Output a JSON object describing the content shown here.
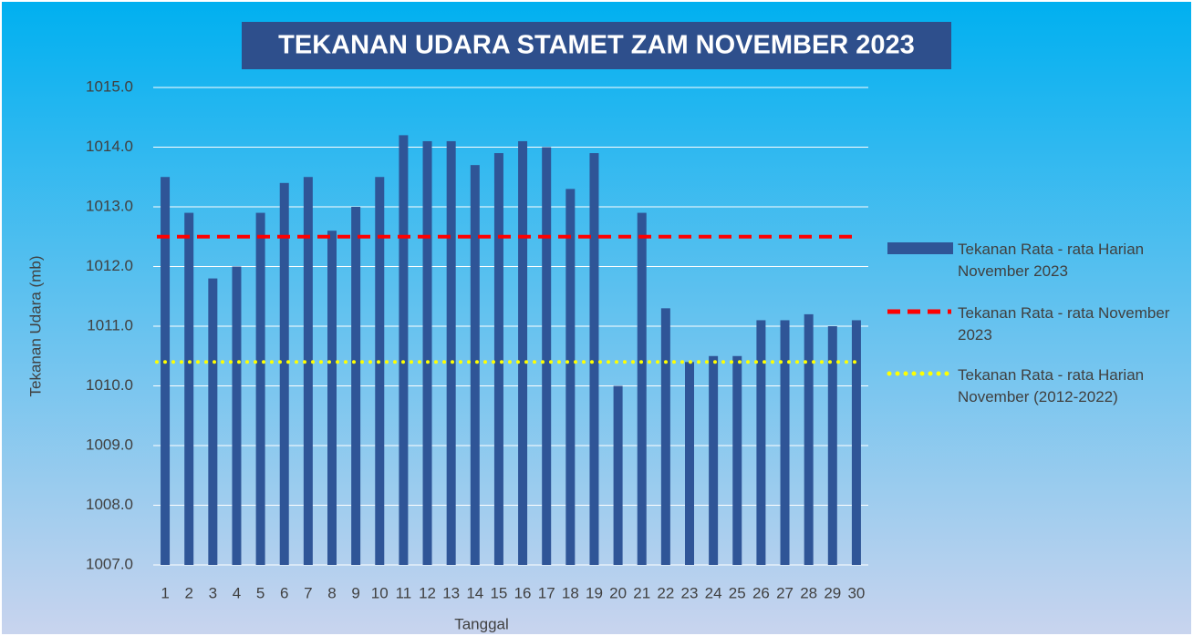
{
  "chart_data": {
    "type": "bar",
    "title": "TEKANAN UDARA STAMET ZAM NOVEMBER 2023",
    "x_label": "Tanggal",
    "y_label": "Tekanan Udara (mb)",
    "categories": [
      "1",
      "2",
      "3",
      "4",
      "5",
      "6",
      "7",
      "8",
      "9",
      "10",
      "11",
      "12",
      "13",
      "14",
      "15",
      "16",
      "17",
      "18",
      "19",
      "20",
      "21",
      "22",
      "23",
      "24",
      "25",
      "26",
      "27",
      "28",
      "29",
      "30"
    ],
    "series": [
      {
        "name": "Tekanan Rata - rata Harian November 2023",
        "color": "#2f5597",
        "kind": "bar",
        "values": [
          1013.5,
          1012.9,
          1011.8,
          1012.0,
          1012.9,
          1013.4,
          1013.5,
          1012.6,
          1013.0,
          1013.5,
          1014.2,
          1014.1,
          1014.1,
          1013.7,
          1013.9,
          1014.1,
          1014.0,
          1013.3,
          1013.9,
          1010.0,
          1012.9,
          1011.3,
          1010.4,
          1010.5,
          1010.5,
          1011.1,
          1011.1,
          1011.2,
          1011.0,
          1011.1
        ]
      },
      {
        "name": "Tekanan Rata - rata November 2023",
        "color": "#ff0000",
        "kind": "dashed",
        "value": 1012.5
      },
      {
        "name": "Tekanan Rata - rata Harian November (2012-2022)",
        "color": "#ffff00",
        "kind": "dotted",
        "value": 1010.4
      }
    ],
    "ylim": [
      1007,
      1015
    ],
    "yticks": [
      {
        "value": 1007,
        "label": "1007.0"
      },
      {
        "value": 1008,
        "label": "1008.0"
      },
      {
        "value": 1009,
        "label": "1009.0"
      },
      {
        "value": 1010,
        "label": "1010.0"
      },
      {
        "value": 1011,
        "label": "1011.0"
      },
      {
        "value": 1012,
        "label": "1012.0"
      },
      {
        "value": 1013,
        "label": "1013.0"
      },
      {
        "value": 1014,
        "label": "1014.0"
      },
      {
        "value": 1015,
        "label": "1015.0"
      }
    ],
    "grid": true,
    "legend": "right"
  }
}
